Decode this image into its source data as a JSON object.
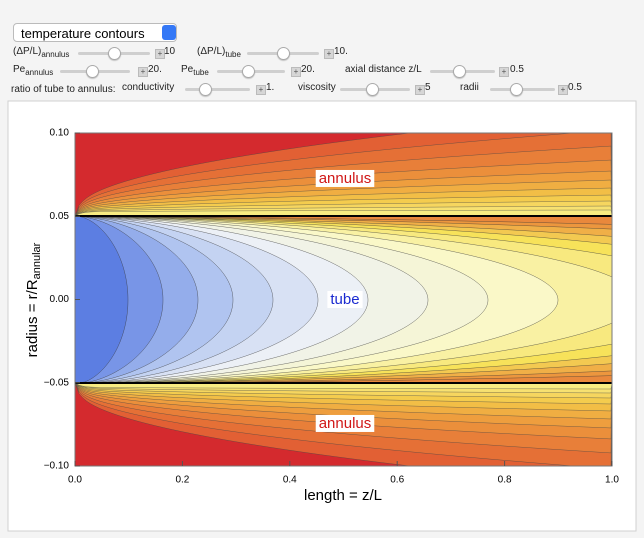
{
  "controls": {
    "dropdown": "temperature contours",
    "ratio_label": "ratio of tube to annulus:",
    "sliders": [
      {
        "label": "(ΔP/L)",
        "sub": "annulus",
        "value": "10"
      },
      {
        "label": "(ΔP/L)",
        "sub": "tube",
        "value": "10."
      },
      {
        "label": "Pe",
        "sub": "annulus",
        "value": "20."
      },
      {
        "label": "Pe",
        "sub": "tube",
        "value": "20."
      },
      {
        "label": "axial distance z/L",
        "value": "0.5"
      },
      {
        "label": "conductivity",
        "value": "1."
      },
      {
        "label": "viscosity",
        "value": "5"
      },
      {
        "label": "radii",
        "value": "0.5"
      }
    ]
  },
  "chart_data": {
    "type": "contour",
    "xlabel": "length = z/L",
    "ylabel": {
      "text": "radius = r/R",
      "sub": "annular"
    },
    "xlim": [
      0,
      1
    ],
    "ylim": [
      -0.1,
      0.1
    ],
    "xticks": [
      {
        "value": 0,
        "label": "0.0"
      },
      0.2,
      0.4,
      0.6,
      0.8,
      {
        "value": 1,
        "label": "1.0"
      }
    ],
    "yticks": [
      {
        "value": -0.1,
        "label": "−0.10"
      },
      {
        "value": -0.05,
        "label": "−0.05"
      },
      {
        "value": 0,
        "label": "0.00"
      },
      0.05,
      {
        "value": 0.1,
        "label": "0.10"
      }
    ],
    "annotations": [
      "annulus",
      "tube",
      "annulus"
    ]
  }
}
